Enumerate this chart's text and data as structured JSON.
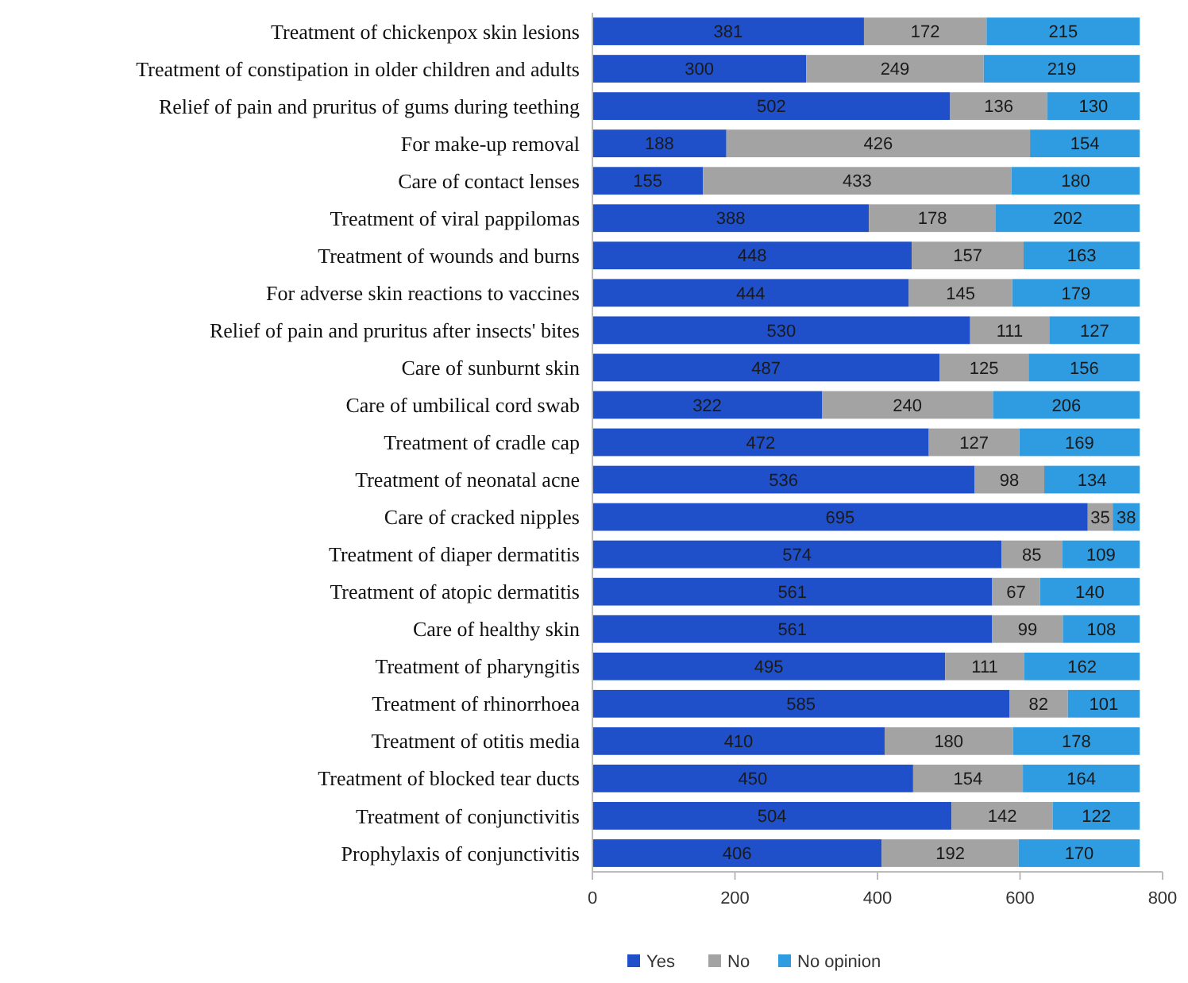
{
  "chart_data": {
    "type": "bar",
    "orientation": "horizontal",
    "stacked": true,
    "data_labels": true,
    "legend": "bottom",
    "categories": [
      "Treatment of chickenpox skin lesions",
      "Treatment of constipation in older children and adults",
      "Relief of pain and pruritus of gums during teething",
      "For make-up removal",
      "Care of contact lenses",
      "Treatment of viral pappilomas",
      "Treatment of wounds and burns",
      "For adverse skin reactions to vaccines",
      "Relief of pain and pruritus after insects' bites",
      "Care of sunburnt skin",
      "Care of umbilical cord swab",
      "Treatment of cradle cap",
      "Treatment of neonatal acne",
      "Care of cracked nipples",
      "Treatment of diaper dermatitis",
      "Treatment of atopic dermatitis",
      "Care of healthy skin",
      "Treatment of pharyngitis",
      "Treatment of rhinorrhoea",
      "Treatment of otitis media",
      "Treatment of blocked tear ducts",
      "Treatment of conjunctivitis",
      "Prophylaxis of conjunctivitis"
    ],
    "series": [
      {
        "name": "Yes",
        "color": "#1f4fc9",
        "values": [
          381,
          300,
          502,
          188,
          155,
          388,
          448,
          444,
          530,
          487,
          322,
          472,
          536,
          695,
          574,
          561,
          561,
          495,
          585,
          410,
          450,
          504,
          406
        ]
      },
      {
        "name": "No",
        "color": "#a3a3a3",
        "values": [
          172,
          249,
          136,
          426,
          433,
          178,
          157,
          145,
          111,
          125,
          240,
          127,
          98,
          35,
          85,
          67,
          99,
          111,
          82,
          180,
          154,
          142,
          192
        ]
      },
      {
        "name": "No opinion",
        "color": "#2f9be0",
        "values": [
          215,
          219,
          130,
          154,
          180,
          202,
          163,
          179,
          127,
          156,
          206,
          169,
          134,
          38,
          109,
          140,
          108,
          162,
          101,
          178,
          164,
          122,
          170
        ]
      }
    ],
    "xlim": [
      0,
      800
    ],
    "xticks": [
      0,
      200,
      400,
      600,
      800
    ]
  }
}
